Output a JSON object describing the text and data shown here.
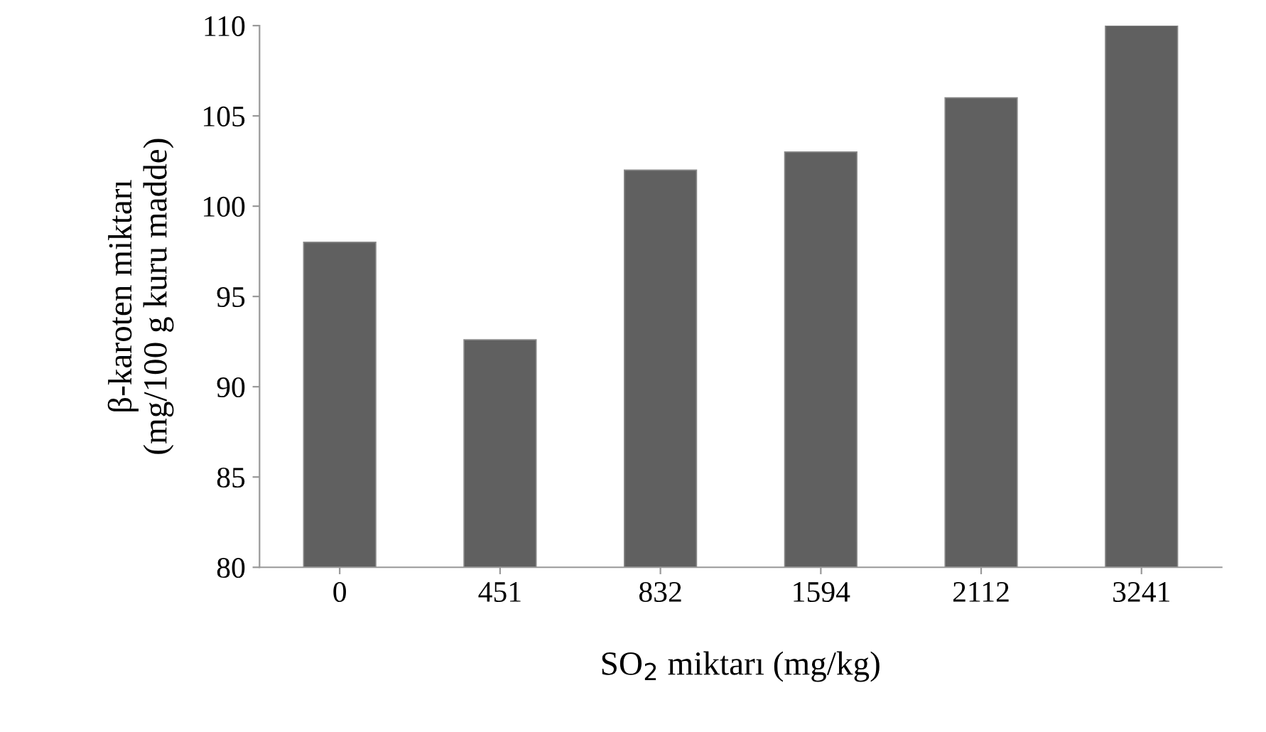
{
  "chart_data": {
    "type": "bar",
    "categories": [
      "0",
      "451",
      "832",
      "1594",
      "2112",
      "3241"
    ],
    "values": [
      98,
      92.6,
      102,
      103,
      106,
      110
    ],
    "color": "#606060",
    "xlabel": "SO$_{2}$ miktarı (mg/kg)",
    "ylabel": "β-karoten miktarı\n(mg/100 g kuru madde)",
    "ylim": [
      80,
      110
    ],
    "yticks": [
      80,
      85,
      90,
      95,
      100,
      105,
      110
    ],
    "grid": false,
    "legend": false
  }
}
